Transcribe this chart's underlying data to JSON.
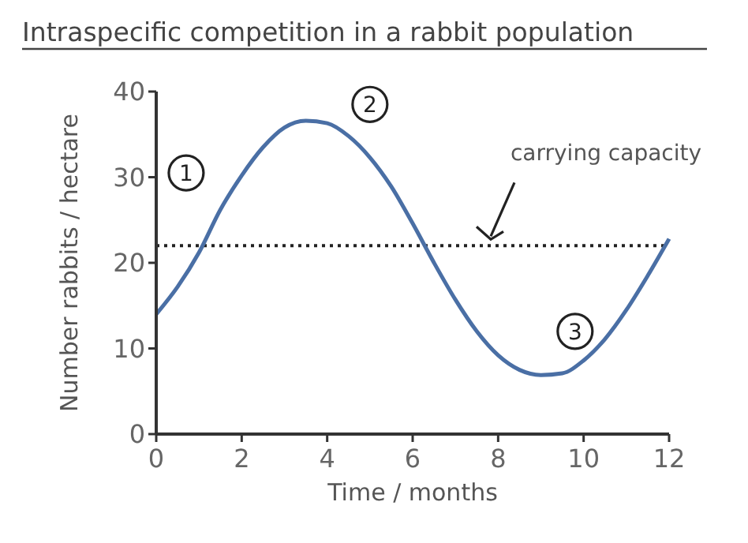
{
  "chart_data": {
    "type": "line",
    "title": "Intraspecific competition in a rabbit population",
    "xlabel": "Time / months",
    "ylabel": "Number rabbits / hectare",
    "x": [
      0,
      0.5,
      1,
      1.5,
      2,
      2.5,
      3,
      3.5,
      4,
      4.5,
      5,
      5.5,
      6,
      6.5,
      7,
      7.5,
      8,
      8.5,
      9,
      9.5,
      10,
      10.5,
      11,
      11.5,
      12
    ],
    "series": [
      {
        "color": "#4a6fa5",
        "values": [
          14,
          17.2,
          21.2,
          26.2,
          30.2,
          33.5,
          35.8,
          36.6,
          36.3,
          34.8,
          32.3,
          28.9,
          24.6,
          20,
          15.7,
          12,
          9.2,
          7.5,
          6.9,
          7.1,
          8.6,
          11.1,
          14.5,
          18.5,
          22.8
        ]
      }
    ],
    "xlim": [
      0,
      12
    ],
    "xticks": [
      0,
      2,
      4,
      6,
      8,
      10,
      12
    ],
    "ylim": [
      0,
      40
    ],
    "yticks": [
      0,
      10,
      20,
      30,
      40
    ],
    "ref_lines": [
      {
        "axis": "y",
        "value": 22,
        "label": "carrying capacity",
        "color": "#222222",
        "line_style": "dotted"
      }
    ],
    "annotations": [
      {
        "text": "1",
        "x": 0.7,
        "y": 30.5
      },
      {
        "text": "2",
        "x": 5,
        "y": 38.5
      },
      {
        "text": "3",
        "x": 9.8,
        "y": 12
      }
    ],
    "grid": false,
    "marker": "none",
    "line_style": "solid"
  }
}
